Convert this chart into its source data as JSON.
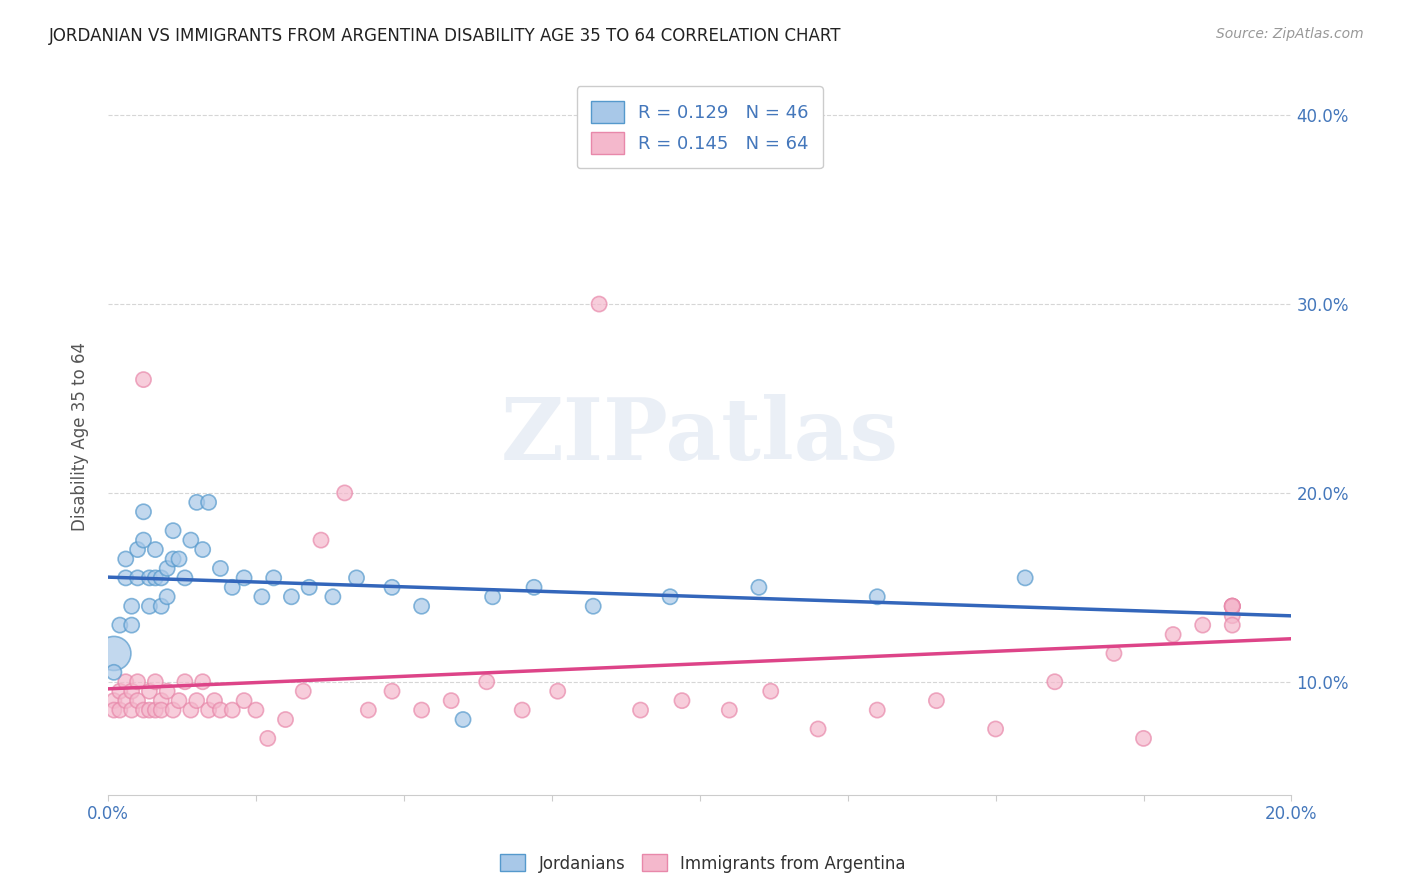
{
  "title": "JORDANIAN VS IMMIGRANTS FROM ARGENTINA DISABILITY AGE 35 TO 64 CORRELATION CHART",
  "source": "Source: ZipAtlas.com",
  "ylabel": "Disability Age 35 to 64",
  "jordanians_label": "Jordanians",
  "argentina_label": "Immigrants from Argentina",
  "blue_color": "#a8c8e8",
  "pink_color": "#f4b8cc",
  "blue_edge_color": "#5599cc",
  "pink_edge_color": "#e888aa",
  "blue_line_color": "#3366bb",
  "pink_line_color": "#dd4488",
  "watermark": "ZIPatlas",
  "xmin": 0.0,
  "xmax": 0.2,
  "ymin": 0.04,
  "ymax": 0.42,
  "legend_blue_label": "R = 0.129   N = 46",
  "legend_pink_label": "R = 0.145   N = 64",
  "jordanians_x": [
    0.001,
    0.001,
    0.002,
    0.003,
    0.003,
    0.004,
    0.004,
    0.005,
    0.005,
    0.006,
    0.006,
    0.007,
    0.007,
    0.008,
    0.008,
    0.009,
    0.009,
    0.01,
    0.01,
    0.011,
    0.011,
    0.012,
    0.013,
    0.014,
    0.015,
    0.016,
    0.017,
    0.019,
    0.021,
    0.023,
    0.026,
    0.028,
    0.031,
    0.034,
    0.038,
    0.042,
    0.048,
    0.053,
    0.06,
    0.065,
    0.072,
    0.082,
    0.095,
    0.11,
    0.13,
    0.155
  ],
  "jordanians_y": [
    0.115,
    0.105,
    0.13,
    0.165,
    0.155,
    0.14,
    0.13,
    0.17,
    0.155,
    0.19,
    0.175,
    0.155,
    0.14,
    0.17,
    0.155,
    0.155,
    0.14,
    0.16,
    0.145,
    0.18,
    0.165,
    0.165,
    0.155,
    0.175,
    0.195,
    0.17,
    0.195,
    0.16,
    0.15,
    0.155,
    0.145,
    0.155,
    0.145,
    0.15,
    0.145,
    0.155,
    0.15,
    0.14,
    0.08,
    0.145,
    0.15,
    0.14,
    0.145,
    0.15,
    0.145,
    0.155
  ],
  "jordanians_big": [
    0,
    1
  ],
  "argentina_x": [
    0.001,
    0.001,
    0.002,
    0.002,
    0.003,
    0.003,
    0.004,
    0.004,
    0.005,
    0.005,
    0.006,
    0.006,
    0.007,
    0.007,
    0.008,
    0.008,
    0.009,
    0.009,
    0.01,
    0.011,
    0.012,
    0.013,
    0.014,
    0.015,
    0.016,
    0.017,
    0.018,
    0.019,
    0.021,
    0.023,
    0.025,
    0.027,
    0.03,
    0.033,
    0.036,
    0.04,
    0.044,
    0.048,
    0.053,
    0.058,
    0.064,
    0.07,
    0.076,
    0.083,
    0.09,
    0.097,
    0.105,
    0.112,
    0.12,
    0.13,
    0.14,
    0.15,
    0.16,
    0.17,
    0.175,
    0.18,
    0.185,
    0.19,
    0.19,
    0.19,
    0.19,
    0.19,
    0.19,
    0.19
  ],
  "argentina_y": [
    0.09,
    0.085,
    0.095,
    0.085,
    0.1,
    0.09,
    0.085,
    0.095,
    0.1,
    0.09,
    0.085,
    0.26,
    0.095,
    0.085,
    0.085,
    0.1,
    0.09,
    0.085,
    0.095,
    0.085,
    0.09,
    0.1,
    0.085,
    0.09,
    0.1,
    0.085,
    0.09,
    0.085,
    0.085,
    0.09,
    0.085,
    0.07,
    0.08,
    0.095,
    0.175,
    0.2,
    0.085,
    0.095,
    0.085,
    0.09,
    0.1,
    0.085,
    0.095,
    0.3,
    0.085,
    0.09,
    0.085,
    0.095,
    0.075,
    0.085,
    0.09,
    0.075,
    0.1,
    0.115,
    0.07,
    0.125,
    0.13,
    0.135,
    0.13,
    0.14,
    0.14,
    0.14,
    0.14,
    0.14
  ]
}
